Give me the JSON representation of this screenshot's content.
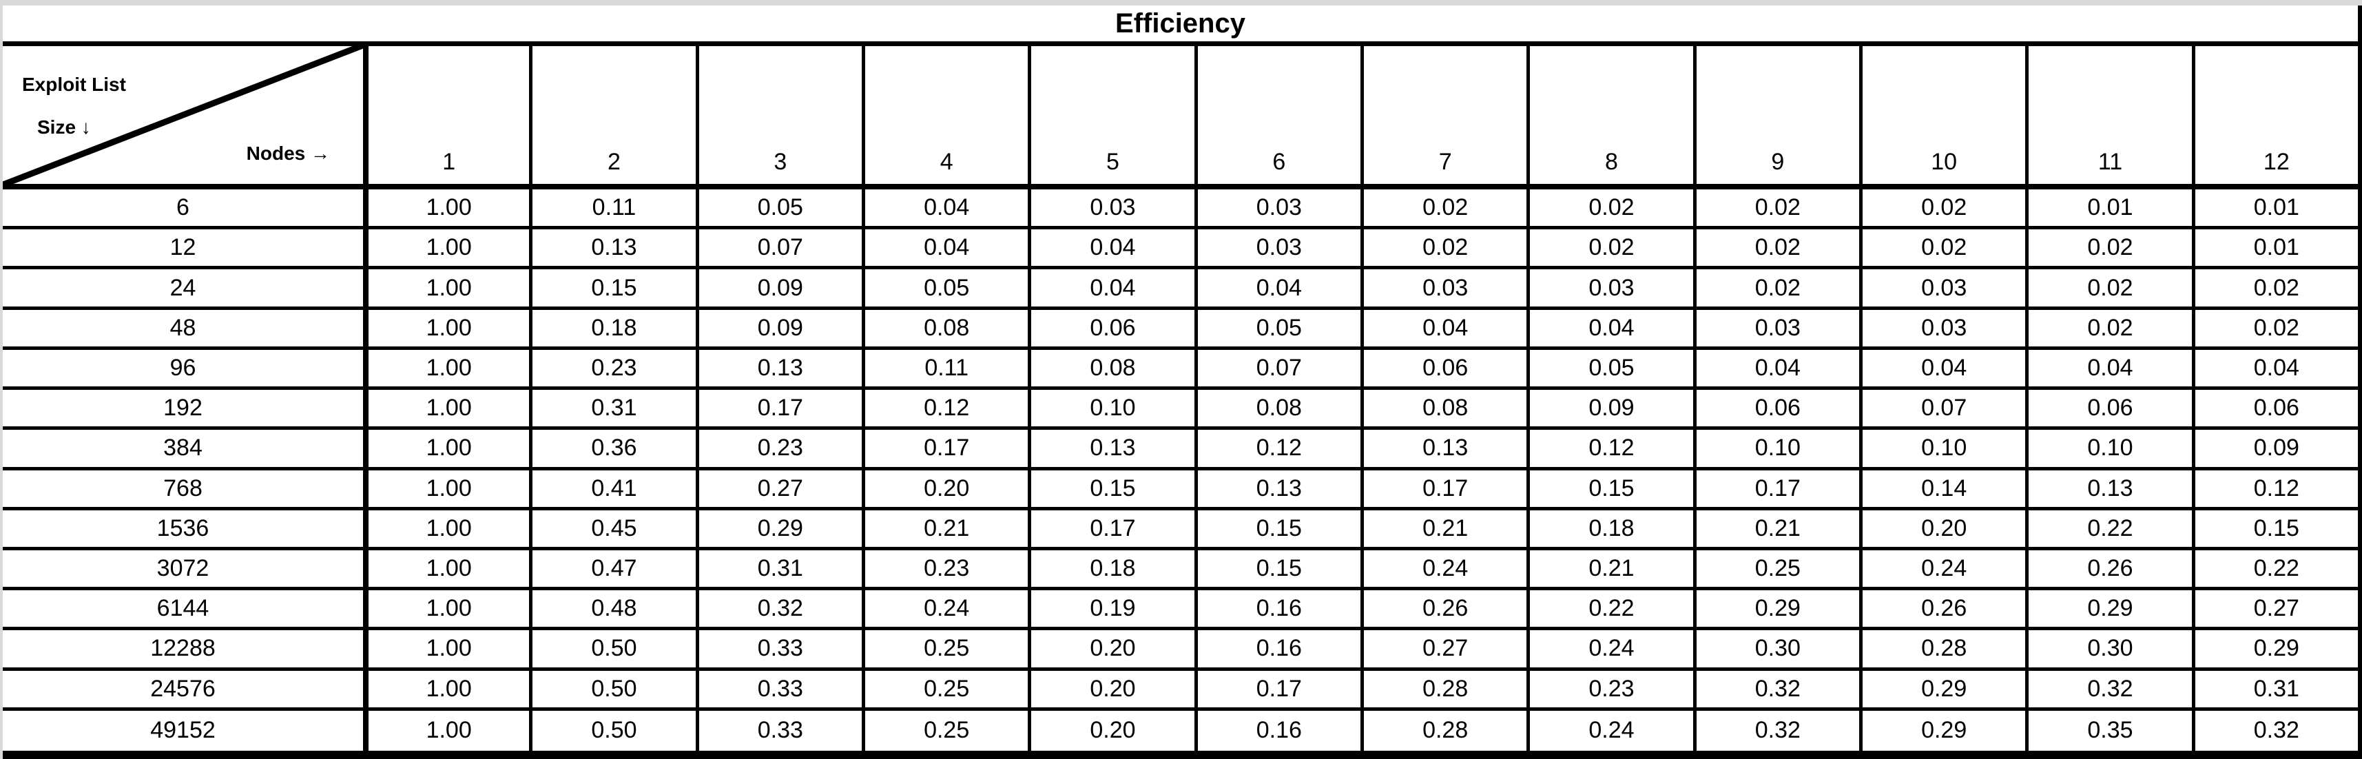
{
  "title": "Efficiency",
  "corner": {
    "line1": "Exploit List",
    "line2": "Size ↓",
    "line3": "Nodes →"
  },
  "colors": {
    "border": "#000000",
    "background": "#ffffff",
    "page_edge": "#d9d9d9",
    "text": "#000000"
  },
  "chart_data": {
    "type": "table",
    "title": "Efficiency",
    "row_axis_label": "Exploit List Size ↓",
    "col_axis_label": "Nodes →",
    "columns": [
      "1",
      "2",
      "3",
      "4",
      "5",
      "6",
      "7",
      "8",
      "9",
      "10",
      "11",
      "12"
    ],
    "rows": [
      {
        "label": "6",
        "values": [
          "1.00",
          "0.11",
          "0.05",
          "0.04",
          "0.03",
          "0.03",
          "0.02",
          "0.02",
          "0.02",
          "0.02",
          "0.01",
          "0.01"
        ]
      },
      {
        "label": "12",
        "values": [
          "1.00",
          "0.13",
          "0.07",
          "0.04",
          "0.04",
          "0.03",
          "0.02",
          "0.02",
          "0.02",
          "0.02",
          "0.02",
          "0.01"
        ]
      },
      {
        "label": "24",
        "values": [
          "1.00",
          "0.15",
          "0.09",
          "0.05",
          "0.04",
          "0.04",
          "0.03",
          "0.03",
          "0.02",
          "0.03",
          "0.02",
          "0.02"
        ]
      },
      {
        "label": "48",
        "values": [
          "1.00",
          "0.18",
          "0.09",
          "0.08",
          "0.06",
          "0.05",
          "0.04",
          "0.04",
          "0.03",
          "0.03",
          "0.02",
          "0.02"
        ]
      },
      {
        "label": "96",
        "values": [
          "1.00",
          "0.23",
          "0.13",
          "0.11",
          "0.08",
          "0.07",
          "0.06",
          "0.05",
          "0.04",
          "0.04",
          "0.04",
          "0.04"
        ]
      },
      {
        "label": "192",
        "values": [
          "1.00",
          "0.31",
          "0.17",
          "0.12",
          "0.10",
          "0.08",
          "0.08",
          "0.09",
          "0.06",
          "0.07",
          "0.06",
          "0.06"
        ]
      },
      {
        "label": "384",
        "values": [
          "1.00",
          "0.36",
          "0.23",
          "0.17",
          "0.13",
          "0.12",
          "0.13",
          "0.12",
          "0.10",
          "0.10",
          "0.10",
          "0.09"
        ]
      },
      {
        "label": "768",
        "values": [
          "1.00",
          "0.41",
          "0.27",
          "0.20",
          "0.15",
          "0.13",
          "0.17",
          "0.15",
          "0.17",
          "0.14",
          "0.13",
          "0.12"
        ]
      },
      {
        "label": "1536",
        "values": [
          "1.00",
          "0.45",
          "0.29",
          "0.21",
          "0.17",
          "0.15",
          "0.21",
          "0.18",
          "0.21",
          "0.20",
          "0.22",
          "0.15"
        ]
      },
      {
        "label": "3072",
        "values": [
          "1.00",
          "0.47",
          "0.31",
          "0.23",
          "0.18",
          "0.15",
          "0.24",
          "0.21",
          "0.25",
          "0.24",
          "0.26",
          "0.22"
        ]
      },
      {
        "label": "6144",
        "values": [
          "1.00",
          "0.48",
          "0.32",
          "0.24",
          "0.19",
          "0.16",
          "0.26",
          "0.22",
          "0.29",
          "0.26",
          "0.29",
          "0.27"
        ]
      },
      {
        "label": "12288",
        "values": [
          "1.00",
          "0.50",
          "0.33",
          "0.25",
          "0.20",
          "0.16",
          "0.27",
          "0.24",
          "0.30",
          "0.28",
          "0.30",
          "0.29"
        ]
      },
      {
        "label": "24576",
        "values": [
          "1.00",
          "0.50",
          "0.33",
          "0.25",
          "0.20",
          "0.17",
          "0.28",
          "0.23",
          "0.32",
          "0.29",
          "0.32",
          "0.31"
        ]
      },
      {
        "label": "49152",
        "values": [
          "1.00",
          "0.50",
          "0.33",
          "0.25",
          "0.20",
          "0.16",
          "0.28",
          "0.24",
          "0.32",
          "0.29",
          "0.35",
          "0.32"
        ]
      }
    ]
  }
}
